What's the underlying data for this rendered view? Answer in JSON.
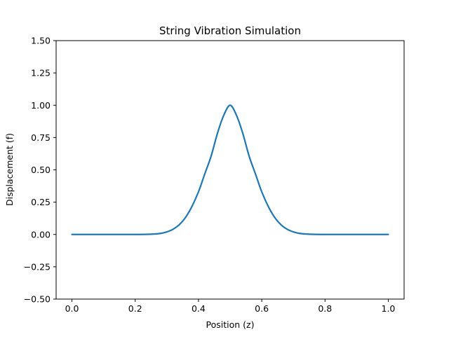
{
  "chart_data": {
    "type": "line",
    "title": "String Vibration Simulation",
    "xlabel": "Position (z)",
    "ylabel": "Displacement (f)",
    "xlim": [
      -0.05,
      1.05
    ],
    "ylim": [
      -0.5,
      1.5
    ],
    "xticks": [
      "0.0",
      "0.2",
      "0.4",
      "0.6",
      "0.8",
      "1.0"
    ],
    "yticks": [
      "−0.50",
      "−0.25",
      "0.00",
      "0.25",
      "0.50",
      "0.75",
      "1.00",
      "1.25",
      "1.50"
    ],
    "grid": false,
    "line_color": "#1f77b4",
    "series": [
      {
        "x": [
          0.0,
          0.05,
          0.1,
          0.15,
          0.2,
          0.25,
          0.28,
          0.3,
          0.32,
          0.34,
          0.36,
          0.38,
          0.4,
          0.42,
          0.44,
          0.46,
          0.48,
          0.5,
          0.52,
          0.54,
          0.56,
          0.58,
          0.6,
          0.62,
          0.64,
          0.66,
          0.68,
          0.7,
          0.72,
          0.75,
          0.8,
          0.85,
          0.9,
          0.95,
          1.0
        ],
        "y": [
          0.0,
          0.0,
          0.0,
          0.0,
          0.0,
          0.002,
          0.008,
          0.02,
          0.041,
          0.077,
          0.135,
          0.22,
          0.33,
          0.469,
          0.607,
          0.783,
          0.923,
          1.0,
          0.923,
          0.783,
          0.607,
          0.469,
          0.33,
          0.22,
          0.135,
          0.077,
          0.041,
          0.02,
          0.008,
          0.002,
          0.0,
          0.0,
          0.0,
          0.0,
          0.0
        ]
      }
    ]
  }
}
